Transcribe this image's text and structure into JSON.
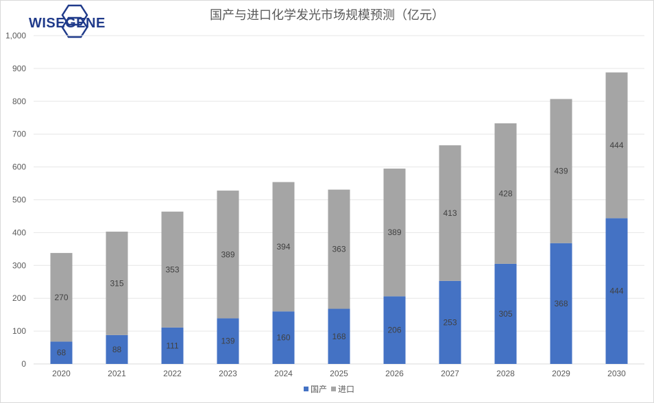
{
  "logo": {
    "text": "WISEGENE"
  },
  "chart_data": {
    "type": "bar",
    "stacked": true,
    "title": "国产与进口化学发光市场规模预测（亿元）",
    "xlabel": "",
    "ylabel": "",
    "categories": [
      "2020",
      "2021",
      "2022",
      "2023",
      "2024",
      "2025",
      "2026",
      "2027",
      "2028",
      "2029",
      "2030"
    ],
    "series": [
      {
        "name": "国产",
        "color": "#4472c4",
        "values": [
          68,
          88,
          111,
          139,
          160,
          168,
          206,
          253,
          305,
          368,
          444
        ]
      },
      {
        "name": "进口",
        "color": "#a5a5a5",
        "values": [
          270,
          315,
          353,
          389,
          394,
          363,
          389,
          413,
          428,
          439,
          444
        ]
      }
    ],
    "ylim": [
      0,
      1000
    ],
    "yticks": [
      "0",
      "100",
      "200",
      "300",
      "400",
      "500",
      "600",
      "700",
      "800",
      "900",
      "1,000"
    ],
    "grid": true,
    "legend_position": "bottom"
  }
}
